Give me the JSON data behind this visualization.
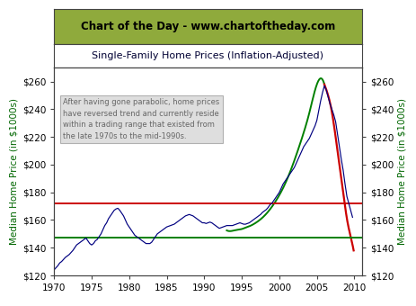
{
  "title": "Chart of the Day - www.chartoftheday.com",
  "subtitle": "Single-Family Home Prices (Inflation-Adjusted)",
  "ylabel_left": "Median Home Price (in $1000s)",
  "ylabel_right": "Median Home Price (in $1000s)",
  "ylim": [
    120,
    270
  ],
  "xlim": [
    1970,
    2011
  ],
  "title_bg": "#8faa3c",
  "title_color": "#000000",
  "subtitle_color": "#000033",
  "hline_green": 147,
  "hline_red": 172,
  "annotation_text": "After having gone parabolic, home prices\nhave reversed trend and currently reside\nwithin a trading range that existed from\nthe late 1970s to the mid-1990s.",
  "yticks": [
    120,
    140,
    160,
    180,
    200,
    220,
    240,
    260
  ],
  "xticks": [
    1970,
    1975,
    1980,
    1985,
    1990,
    1995,
    2000,
    2005,
    2010
  ],
  "home_prices": [
    [
      1970.0,
      124.0
    ],
    [
      1970.25,
      125.5
    ],
    [
      1970.5,
      127.0
    ],
    [
      1970.75,
      129.0
    ],
    [
      1971.0,
      130.0
    ],
    [
      1971.25,
      131.5
    ],
    [
      1971.5,
      133.0
    ],
    [
      1971.75,
      134.0
    ],
    [
      1972.0,
      135.0
    ],
    [
      1972.25,
      136.5
    ],
    [
      1972.5,
      138.0
    ],
    [
      1972.75,
      140.0
    ],
    [
      1973.0,
      142.0
    ],
    [
      1973.25,
      143.0
    ],
    [
      1973.5,
      144.0
    ],
    [
      1973.75,
      145.0
    ],
    [
      1974.0,
      146.0
    ],
    [
      1974.25,
      147.0
    ],
    [
      1974.5,
      145.0
    ],
    [
      1974.75,
      143.0
    ],
    [
      1975.0,
      142.0
    ],
    [
      1975.25,
      143.0
    ],
    [
      1975.5,
      145.0
    ],
    [
      1975.75,
      146.0
    ],
    [
      1976.0,
      148.0
    ],
    [
      1976.25,
      150.0
    ],
    [
      1976.5,
      153.0
    ],
    [
      1976.75,
      156.0
    ],
    [
      1977.0,
      158.0
    ],
    [
      1977.25,
      161.0
    ],
    [
      1977.5,
      163.0
    ],
    [
      1977.75,
      165.0
    ],
    [
      1978.0,
      167.0
    ],
    [
      1978.25,
      168.0
    ],
    [
      1978.5,
      168.5
    ],
    [
      1978.75,
      167.0
    ],
    [
      1979.0,
      165.0
    ],
    [
      1979.25,
      163.0
    ],
    [
      1979.5,
      160.0
    ],
    [
      1979.75,
      157.0
    ],
    [
      1980.0,
      155.0
    ],
    [
      1980.25,
      153.0
    ],
    [
      1980.5,
      151.0
    ],
    [
      1980.75,
      149.0
    ],
    [
      1981.0,
      148.0
    ],
    [
      1981.25,
      147.0
    ],
    [
      1981.5,
      146.0
    ],
    [
      1981.75,
      145.0
    ],
    [
      1982.0,
      144.0
    ],
    [
      1982.25,
      143.0
    ],
    [
      1982.5,
      143.0
    ],
    [
      1982.75,
      143.0
    ],
    [
      1983.0,
      144.0
    ],
    [
      1983.25,
      146.0
    ],
    [
      1983.5,
      148.0
    ],
    [
      1983.75,
      150.0
    ],
    [
      1984.0,
      151.0
    ],
    [
      1984.25,
      152.0
    ],
    [
      1984.5,
      153.0
    ],
    [
      1984.75,
      154.0
    ],
    [
      1985.0,
      155.0
    ],
    [
      1985.25,
      155.5
    ],
    [
      1985.5,
      156.0
    ],
    [
      1985.75,
      156.5
    ],
    [
      1986.0,
      157.0
    ],
    [
      1986.25,
      158.0
    ],
    [
      1986.5,
      159.0
    ],
    [
      1986.75,
      160.0
    ],
    [
      1987.0,
      161.0
    ],
    [
      1987.25,
      162.0
    ],
    [
      1987.5,
      163.0
    ],
    [
      1987.75,
      163.5
    ],
    [
      1988.0,
      164.0
    ],
    [
      1988.25,
      163.5
    ],
    [
      1988.5,
      163.0
    ],
    [
      1988.75,
      162.0
    ],
    [
      1989.0,
      161.0
    ],
    [
      1989.25,
      160.0
    ],
    [
      1989.5,
      159.0
    ],
    [
      1989.75,
      158.0
    ],
    [
      1990.0,
      158.0
    ],
    [
      1990.25,
      157.5
    ],
    [
      1990.5,
      158.0
    ],
    [
      1990.75,
      158.5
    ],
    [
      1991.0,
      158.0
    ],
    [
      1991.25,
      157.0
    ],
    [
      1991.5,
      156.0
    ],
    [
      1991.75,
      155.0
    ],
    [
      1992.0,
      154.0
    ],
    [
      1992.25,
      154.5
    ],
    [
      1992.5,
      155.0
    ],
    [
      1992.75,
      155.5
    ],
    [
      1993.0,
      156.0
    ],
    [
      1993.25,
      156.0
    ],
    [
      1993.5,
      156.0
    ],
    [
      1993.75,
      156.0
    ],
    [
      1994.0,
      156.5
    ],
    [
      1994.25,
      157.0
    ],
    [
      1994.5,
      157.5
    ],
    [
      1994.75,
      158.0
    ],
    [
      1995.0,
      157.5
    ],
    [
      1995.25,
      157.0
    ],
    [
      1995.5,
      157.0
    ],
    [
      1995.75,
      157.5
    ],
    [
      1996.0,
      158.0
    ],
    [
      1996.25,
      159.0
    ],
    [
      1996.5,
      160.0
    ],
    [
      1996.75,
      161.0
    ],
    [
      1997.0,
      162.0
    ],
    [
      1997.25,
      163.0
    ],
    [
      1997.5,
      164.0
    ],
    [
      1997.75,
      165.5
    ],
    [
      1998.0,
      166.5
    ],
    [
      1998.25,
      167.5
    ],
    [
      1998.5,
      169.0
    ],
    [
      1998.75,
      171.0
    ],
    [
      1999.0,
      172.0
    ],
    [
      1999.25,
      174.0
    ],
    [
      1999.5,
      176.0
    ],
    [
      1999.75,
      178.0
    ],
    [
      2000.0,
      180.0
    ],
    [
      2000.25,
      183.0
    ],
    [
      2000.5,
      186.0
    ],
    [
      2000.75,
      188.0
    ],
    [
      2001.0,
      190.0
    ],
    [
      2001.25,
      192.0
    ],
    [
      2001.5,
      194.0
    ],
    [
      2001.75,
      196.0
    ],
    [
      2002.0,
      198.0
    ],
    [
      2002.25,
      201.0
    ],
    [
      2002.5,
      204.0
    ],
    [
      2002.75,
      207.0
    ],
    [
      2003.0,
      210.0
    ],
    [
      2003.25,
      213.0
    ],
    [
      2003.5,
      215.0
    ],
    [
      2003.75,
      217.0
    ],
    [
      2004.0,
      219.0
    ],
    [
      2004.25,
      222.0
    ],
    [
      2004.5,
      225.0
    ],
    [
      2004.75,
      228.0
    ],
    [
      2005.0,
      232.0
    ],
    [
      2005.25,
      239.0
    ],
    [
      2005.5,
      246.0
    ],
    [
      2005.75,
      252.0
    ],
    [
      2006.0,
      257.0
    ],
    [
      2006.25,
      254.0
    ],
    [
      2006.5,
      249.0
    ],
    [
      2006.75,
      244.0
    ],
    [
      2007.0,
      240.0
    ],
    [
      2007.25,
      236.0
    ],
    [
      2007.5,
      231.0
    ],
    [
      2007.75,
      222.0
    ],
    [
      2008.0,
      213.0
    ],
    [
      2008.25,
      204.0
    ],
    [
      2008.5,
      196.0
    ],
    [
      2008.75,
      186.0
    ],
    [
      2009.0,
      177.0
    ],
    [
      2009.25,
      172.0
    ],
    [
      2009.5,
      167.0
    ],
    [
      2009.75,
      162.0
    ]
  ],
  "green_curve_x": [
    1993.0,
    1993.5,
    1994.0,
    1994.5,
    1995.0,
    1995.5,
    1996.0,
    1997.0,
    1998.0,
    1999.0,
    2000.0,
    2001.0,
    2002.0,
    2003.0,
    2004.0,
    2005.0,
    2006.0
  ],
  "green_curve_y": [
    152.5,
    152.0,
    152.5,
    153.0,
    153.5,
    154.5,
    155.5,
    158.5,
    163.0,
    169.5,
    178.0,
    189.0,
    203.0,
    219.0,
    237.5,
    258.0,
    258.0
  ],
  "red_curve_x": [
    2006.0,
    2006.5,
    2007.0,
    2007.5,
    2008.0,
    2008.5,
    2009.0,
    2009.5,
    2009.9
  ],
  "red_curve_y": [
    258.0,
    250.0,
    238.0,
    220.0,
    200.0,
    180.0,
    161.0,
    148.0,
    138.0
  ]
}
